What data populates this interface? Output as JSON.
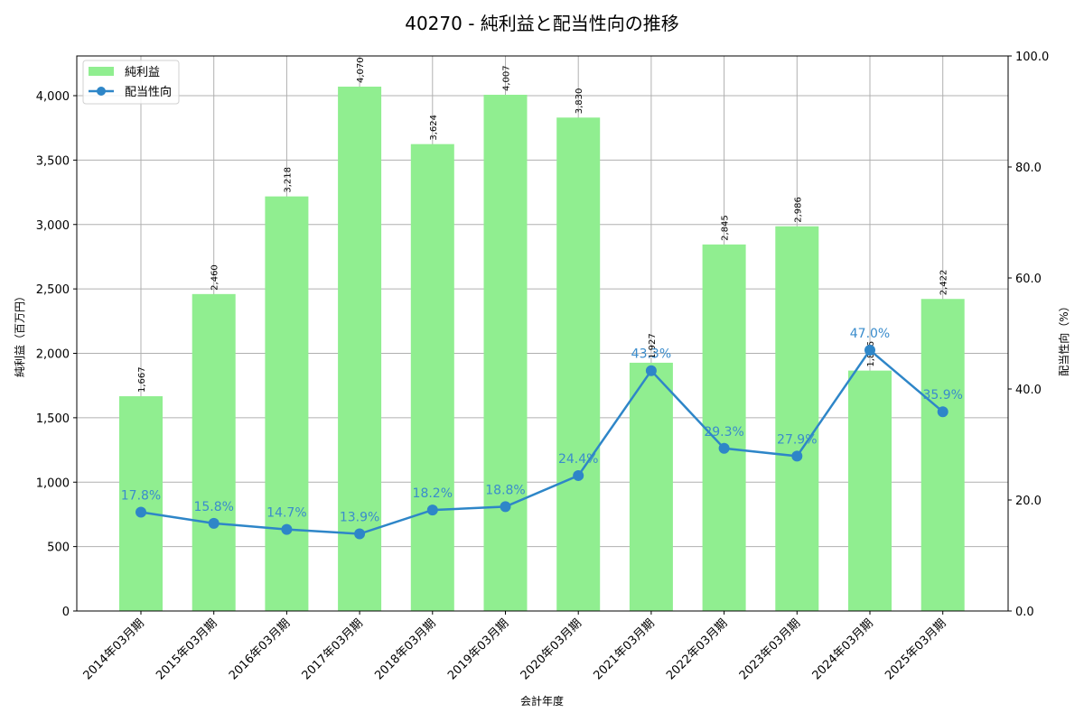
{
  "title": "40270 - 純利益と配当性向の推移",
  "colors": {
    "bar": "#90ee90",
    "line": "#2e86c8",
    "line_label": "#3a8ccc",
    "grid": "#b0b0b0",
    "axis": "#000000"
  },
  "legend": {
    "items": [
      {
        "label": "純利益",
        "type": "bar"
      },
      {
        "label": "配当性向",
        "type": "line"
      }
    ]
  },
  "axes": {
    "x_label": "会計年度",
    "y_left_label": "純利益（百万円）",
    "y_right_label": "配当性向（%）",
    "y_left_ticks": [
      "0",
      "500",
      "1,000",
      "1,500",
      "2,000",
      "2,500",
      "3,000",
      "3,500",
      "4,000"
    ],
    "y_right_ticks": [
      "0.0",
      "20.0",
      "40.0",
      "60.0",
      "80.0",
      "100.0"
    ]
  },
  "chart_data": {
    "type": "bar",
    "title": "40270 - 純利益と配当性向の推移",
    "xlabel": "会計年度",
    "ylabel": "純利益（百万円）",
    "y2label": "配当性向（%）",
    "categories": [
      "2014年03月期",
      "2015年03月期",
      "2016年03月期",
      "2017年03月期",
      "2018年03月期",
      "2019年03月期",
      "2020年03月期",
      "2021年03月期",
      "2022年03月期",
      "2023年03月期",
      "2024年03月期",
      "2025年03月期"
    ],
    "series": [
      {
        "name": "純利益",
        "type": "bar",
        "axis": "left",
        "values": [
          1667,
          2460,
          3218,
          4070,
          3624,
          4007,
          3830,
          1927,
          2845,
          2986,
          1866,
          2422
        ],
        "labels": [
          "1,667",
          "2,460",
          "3,218",
          "4,070",
          "3,624",
          "4,007",
          "3,830",
          "1,927",
          "2,845",
          "2,986",
          "1,866",
          "2,422"
        ]
      },
      {
        "name": "配当性向",
        "type": "line",
        "axis": "right",
        "values": [
          17.8,
          15.8,
          14.7,
          13.9,
          18.2,
          18.8,
          24.4,
          43.3,
          29.3,
          27.9,
          47.0,
          35.9
        ],
        "labels": [
          "17.8%",
          "15.8%",
          "14.7%",
          "13.9%",
          "18.2%",
          "18.8%",
          "24.4%",
          "43.3%",
          "29.3%",
          "27.9%",
          "47.0%",
          "35.9%"
        ]
      }
    ],
    "ylim": [
      0,
      4308
    ],
    "y2lim": [
      0,
      100
    ],
    "grid": true,
    "legend_position": "upper left"
  }
}
